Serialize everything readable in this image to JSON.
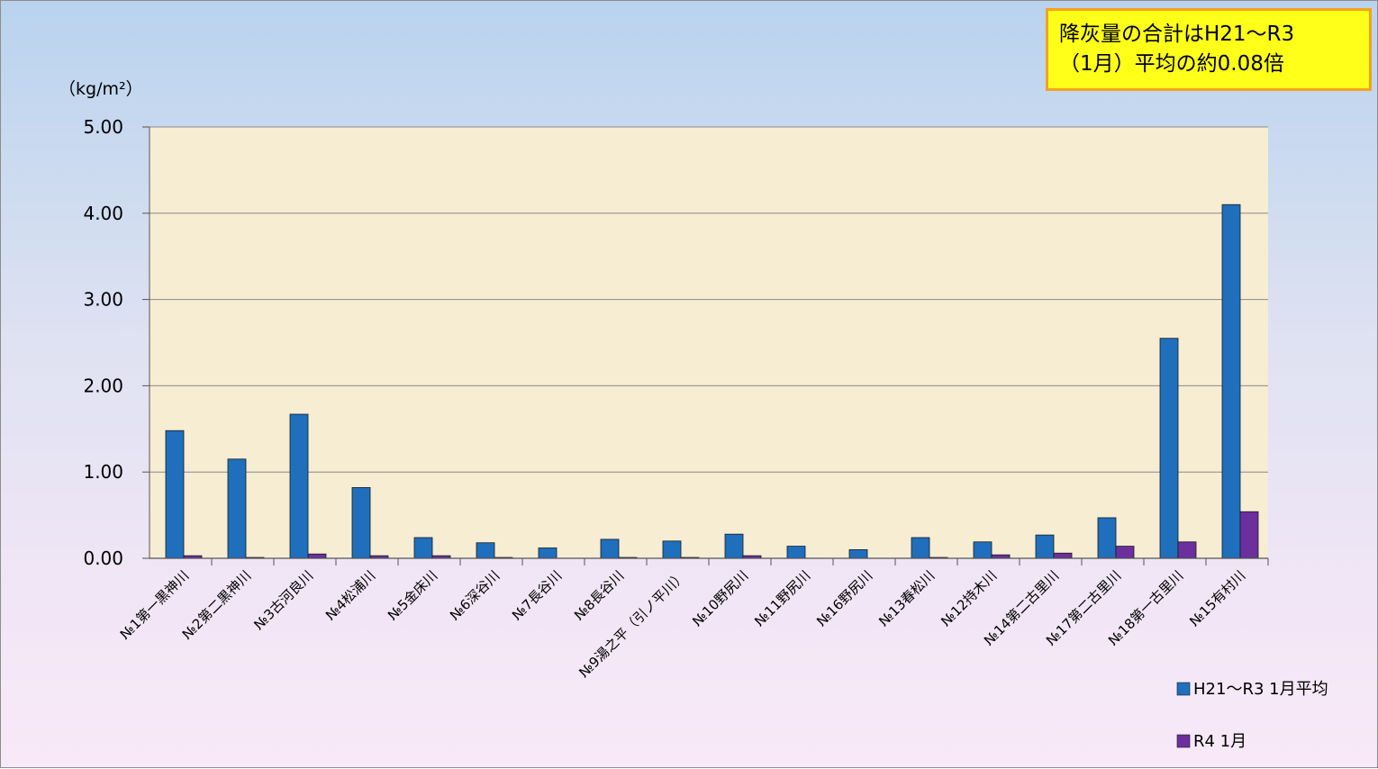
{
  "note": {
    "text": "降灰量の合計はH21〜R3\n（1月）平均の約0.08倍"
  },
  "colors": {
    "series_avg": "#1f6fbd",
    "series_r4": "#6b2f9e",
    "plot_bg": "#f6edd3",
    "grid": "#8a8a8a"
  },
  "chart_data": {
    "type": "bar",
    "ylabel": "（kg/m²）",
    "ylim": [
      0,
      5
    ],
    "yticks": [
      "0.00",
      "1.00",
      "2.00",
      "3.00",
      "4.00",
      "5.00"
    ],
    "grid": true,
    "legend_position": "bottom-right",
    "categories": [
      "№1第一黒神川",
      "№2第二黒神川",
      "№3古河良川",
      "№4松浦川",
      "№5金床川",
      "№6深谷川",
      "№7長谷川",
      "№8長谷川",
      "№9湯之平（引ノ平川）",
      "№10野尻川",
      "№11野尻川",
      "№16野尻川",
      "№13春松川",
      "№12持木川",
      "№14第二古里川",
      "№17第二古里川",
      "№18第一古里川",
      "№15有村川"
    ],
    "series": [
      {
        "name": "H21〜R3  1月平均",
        "values": [
          1.48,
          1.15,
          1.67,
          0.82,
          0.24,
          0.18,
          0.12,
          0.22,
          0.2,
          0.28,
          0.14,
          0.1,
          0.24,
          0.19,
          0.27,
          0.47,
          2.55,
          4.1
        ]
      },
      {
        "name": "R4 1月",
        "values": [
          0.03,
          0.01,
          0.05,
          0.03,
          0.03,
          0.01,
          0.0,
          0.01,
          0.01,
          0.03,
          0.0,
          0.0,
          0.01,
          0.04,
          0.06,
          0.14,
          0.19,
          0.54
        ]
      }
    ]
  }
}
